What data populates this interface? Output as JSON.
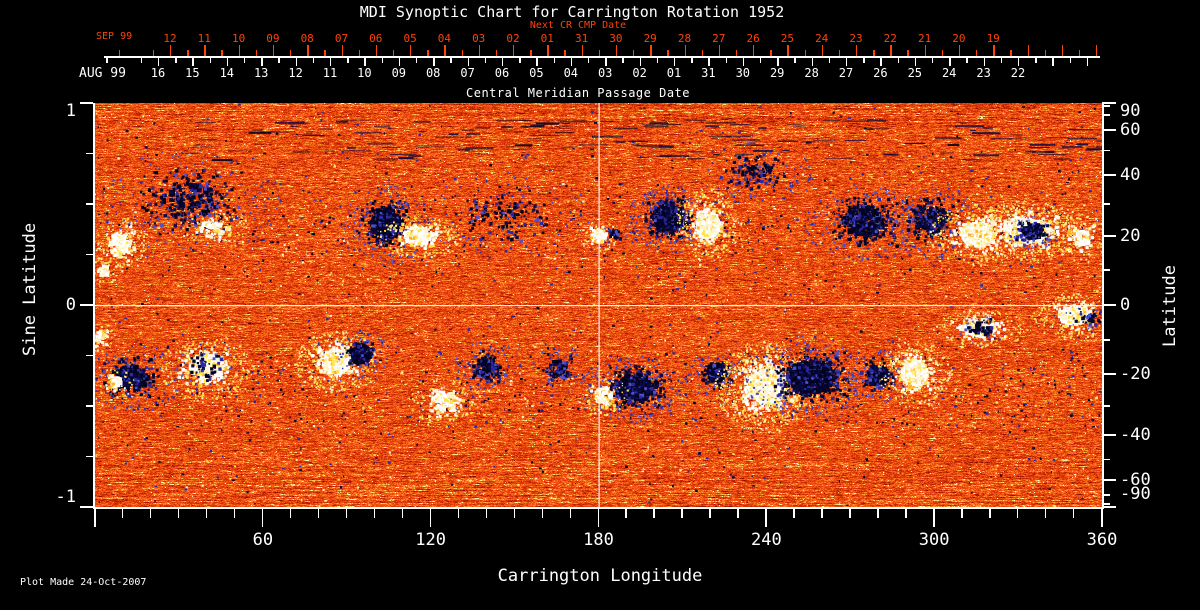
{
  "window": {
    "background": "#000000"
  },
  "chart_data": {
    "type": "heatmap",
    "title": "MDI Synoptic Chart for Carrington Rotation 1952",
    "footer": "Plot Made 24-Oct-2007",
    "top_axis_red": {
      "title": "Next CR CMP Date",
      "month_label": "SEP 99",
      "tick_labels": [
        "12",
        "11",
        "10",
        "09",
        "08",
        "07",
        "06",
        "05",
        "04",
        "03",
        "02",
        "01",
        "31",
        "30",
        "29",
        "28",
        "27",
        "26",
        "25",
        "24",
        "23",
        "22",
        "21",
        "20",
        "19"
      ]
    },
    "top_axis_white": {
      "title": "Central Meridian Passage Date",
      "month_label": "AUG 99",
      "tick_labels": [
        "16",
        "15",
        "14",
        "13",
        "12",
        "11",
        "10",
        "09",
        "08",
        "07",
        "06",
        "05",
        "04",
        "03",
        "02",
        "01",
        "31",
        "30",
        "29",
        "28",
        "27",
        "26",
        "25",
        "24",
        "23",
        "22"
      ]
    },
    "bottom_axis": {
      "title": "Carrington Longitude",
      "range": [
        0,
        360
      ],
      "major_ticks": [
        60,
        120,
        180,
        240,
        300,
        360
      ],
      "minor_step": 10
    },
    "left_axis": {
      "title": "Sine Latitude",
      "range": [
        -1,
        1
      ],
      "major_ticks": [
        1,
        0,
        -1
      ],
      "minor_ticks": [
        0.75,
        0.5,
        0.25,
        -0.25,
        -0.5,
        -0.75
      ]
    },
    "right_axis": {
      "title": "Latitude",
      "major_ticks": [
        90,
        60,
        40,
        20,
        0,
        -20,
        -40,
        -60,
        -90
      ],
      "minor_ticks": [
        80,
        70,
        50,
        30,
        10,
        -10,
        -30,
        -50,
        -70,
        -80
      ]
    },
    "grid_lines": {
      "vertical_longitude": 180,
      "horizontal_sine_latitude": 0
    },
    "colors": {
      "background": "#000000",
      "axis_red": "#ff4208",
      "axis_white": "#ffffff",
      "grid_white": "rgba(255,255,255,0.92)",
      "ramp": [
        [
          0,
          118,
          8,
          0
        ],
        [
          0.18,
          185,
          35,
          2
        ],
        [
          0.42,
          226,
          62,
          10
        ],
        [
          0.62,
          246,
          92,
          22
        ],
        [
          0.78,
          253,
          132,
          40
        ],
        [
          0.9,
          255,
          195,
          80
        ],
        [
          1,
          255,
          250,
          215
        ]
      ],
      "neg_field": [
        "#03031f",
        "#0b0b44",
        "#2a2aa4",
        "#5050c8"
      ],
      "neg_core": "#050522",
      "pos_field": [
        "#ffffff",
        "#fdf4d2",
        "#ffe44f",
        "#ffb02a"
      ],
      "pos_core": "#ffffff",
      "pos_fringe": [
        "#ffd83e",
        "#ffe96a",
        "#f8f0c0"
      ]
    },
    "active_regions": [
      {
        "lon": 9,
        "slat": 0.3,
        "rlon": 6,
        "rslat": 0.09,
        "pol": "pos",
        "density": 0.5,
        "core": 0.3
      },
      {
        "lon": 3,
        "slat": 0.17,
        "rlon": 3,
        "rslat": 0.05,
        "pol": "pos",
        "density": 0.4,
        "core": 0.2
      },
      {
        "lon": 34,
        "slat": 0.52,
        "rlon": 19,
        "rslat": 0.17,
        "pol": "neg",
        "density": 0.22,
        "core": 0.08
      },
      {
        "lon": 42,
        "slat": 0.38,
        "rlon": 8,
        "rslat": 0.06,
        "pol": "pos",
        "density": 0.3,
        "core": 0.15
      },
      {
        "lon": 104,
        "slat": 0.4,
        "rlon": 9,
        "rslat": 0.13,
        "pol": "neg",
        "density": 0.6,
        "core": 0.5
      },
      {
        "lon": 116,
        "slat": 0.34,
        "rlon": 9,
        "rslat": 0.07,
        "pol": "pos",
        "density": 0.55,
        "core": 0.4
      },
      {
        "lon": 146,
        "slat": 0.45,
        "rlon": 18,
        "rslat": 0.15,
        "pol": "neg",
        "density": 0.13,
        "core": 0
      },
      {
        "lon": 180,
        "slat": 0.34,
        "rlon": 4,
        "rslat": 0.05,
        "pol": "pos",
        "density": 0.5,
        "core": 0.4
      },
      {
        "lon": 186,
        "slat": 0.35,
        "rlon": 3,
        "rslat": 0.04,
        "pol": "neg",
        "density": 0.4,
        "core": 0.3
      },
      {
        "lon": 205,
        "slat": 0.43,
        "rlon": 9,
        "rslat": 0.11,
        "pol": "neg",
        "density": 0.8,
        "core": 0.6
      },
      {
        "lon": 219,
        "slat": 0.4,
        "rlon": 7,
        "rslat": 0.12,
        "pol": "pos",
        "density": 0.6,
        "core": 0.45
      },
      {
        "lon": 236,
        "slat": 0.66,
        "rlon": 13,
        "rslat": 0.1,
        "pol": "neg",
        "density": 0.25,
        "core": 0
      },
      {
        "lon": 275,
        "slat": 0.41,
        "rlon": 13,
        "rslat": 0.13,
        "pol": "neg",
        "density": 0.4,
        "core": 0.22
      },
      {
        "lon": 299,
        "slat": 0.42,
        "rlon": 11,
        "rslat": 0.13,
        "pol": "neg",
        "density": 0.33,
        "core": 0.15
      },
      {
        "lon": 315,
        "slat": 0.35,
        "rlon": 10,
        "rslat": 0.1,
        "pol": "pos",
        "density": 0.6,
        "core": 0.5
      },
      {
        "lon": 334,
        "slat": 0.37,
        "rlon": 12,
        "rslat": 0.1,
        "pol": "pos",
        "density": 0.7,
        "core": 0.55
      },
      {
        "lon": 335,
        "slat": 0.365,
        "rlon": 6,
        "rslat": 0.055,
        "pol": "neg",
        "density": 0.75,
        "core": 0.6
      },
      {
        "lon": 352,
        "slat": 0.33,
        "rlon": 6,
        "rslat": 0.08,
        "pol": "pos",
        "density": 0.3,
        "core": 0.2
      },
      {
        "lon": 195,
        "slat": 0.82,
        "rlon": 165,
        "rslat": 0.1,
        "pol": "neg",
        "density": 0.5,
        "core": 0,
        "style": "streaks"
      },
      {
        "lon": 13,
        "slat": -0.36,
        "rlon": 11,
        "rslat": 0.11,
        "pol": "neg",
        "density": 0.4,
        "core": 0.25
      },
      {
        "lon": 7,
        "slat": -0.38,
        "rlon": 4,
        "rslat": 0.05,
        "pol": "pos",
        "density": 0.45,
        "core": 0.3
      },
      {
        "lon": 2,
        "slat": -0.16,
        "rlon": 3,
        "rslat": 0.06,
        "pol": "pos",
        "density": 0.35,
        "core": 0.2
      },
      {
        "lon": 40,
        "slat": -0.31,
        "rlon": 10,
        "rslat": 0.11,
        "pol": "pos",
        "density": 0.5,
        "core": 0.35
      },
      {
        "lon": 40,
        "slat": -0.3,
        "rlon": 7,
        "rslat": 0.08,
        "pol": "neg",
        "density": 0.18,
        "core": 0
      },
      {
        "lon": 86,
        "slat": -0.28,
        "rlon": 9,
        "rslat": 0.1,
        "pol": "pos",
        "density": 0.7,
        "core": 0.55
      },
      {
        "lon": 95,
        "slat": -0.24,
        "rlon": 6,
        "rslat": 0.08,
        "pol": "neg",
        "density": 0.55,
        "core": 0.45
      },
      {
        "lon": 125,
        "slat": -0.48,
        "rlon": 8,
        "rslat": 0.08,
        "pol": "pos",
        "density": 0.4,
        "core": 0.25
      },
      {
        "lon": 140,
        "slat": -0.31,
        "rlon": 7,
        "rslat": 0.09,
        "pol": "neg",
        "density": 0.4,
        "core": 0.2
      },
      {
        "lon": 166,
        "slat": -0.32,
        "rlon": 6,
        "rslat": 0.08,
        "pol": "neg",
        "density": 0.35,
        "core": 0.2
      },
      {
        "lon": 193,
        "slat": -0.41,
        "rlon": 12,
        "rslat": 0.11,
        "pol": "neg",
        "density": 0.6,
        "core": 0.45
      },
      {
        "lon": 182,
        "slat": -0.45,
        "rlon": 5,
        "rslat": 0.07,
        "pol": "pos",
        "density": 0.4,
        "core": 0.25
      },
      {
        "lon": 222,
        "slat": -0.34,
        "rlon": 6,
        "rslat": 0.08,
        "pol": "neg",
        "density": 0.5,
        "core": 0.3
      },
      {
        "lon": 240,
        "slat": -0.4,
        "rlon": 11,
        "rslat": 0.15,
        "pol": "pos",
        "density": 0.8,
        "core": 0.6
      },
      {
        "lon": 256,
        "slat": -0.36,
        "rlon": 14,
        "rslat": 0.14,
        "pol": "neg",
        "density": 0.6,
        "core": 0.5
      },
      {
        "lon": 280,
        "slat": -0.35,
        "rlon": 7,
        "rslat": 0.09,
        "pol": "neg",
        "density": 0.45,
        "core": 0.3
      },
      {
        "lon": 293,
        "slat": -0.34,
        "rlon": 8,
        "rslat": 0.11,
        "pol": "pos",
        "density": 0.6,
        "core": 0.4
      },
      {
        "lon": 316,
        "slat": -0.115,
        "rlon": 10,
        "rslat": 0.065,
        "pol": "pos",
        "density": 0.5,
        "core": 0.3
      },
      {
        "lon": 317,
        "slat": -0.12,
        "rlon": 6,
        "rslat": 0.05,
        "pol": "neg",
        "density": 0.3,
        "core": 0.15
      },
      {
        "lon": 350,
        "slat": -0.055,
        "rlon": 9,
        "rslat": 0.075,
        "pol": "pos",
        "density": 0.55,
        "core": 0.4
      },
      {
        "lon": 355,
        "slat": -0.06,
        "rlon": 5,
        "rslat": 0.05,
        "pol": "neg",
        "density": 0.3,
        "core": 0.1
      }
    ]
  }
}
